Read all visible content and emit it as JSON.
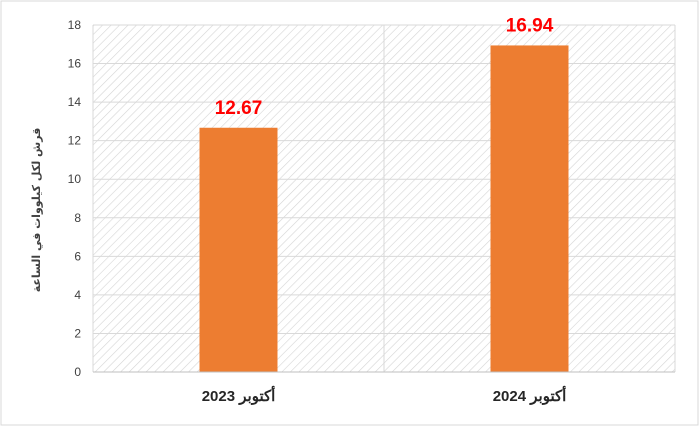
{
  "chart_data": {
    "type": "bar",
    "title": "",
    "xlabel": "",
    "ylabel": "قرش لكل كيلووات في الساعة",
    "categories": [
      "أكتوبر 2023",
      "أكتوبر 2024"
    ],
    "values": [
      12.67,
      16.94
    ],
    "data_labels": [
      "12.67",
      "16.94"
    ],
    "y_ticks": [
      "0",
      "2",
      "4",
      "6",
      "8",
      "10",
      "12",
      "14",
      "16",
      "18"
    ],
    "ylim": [
      0,
      18
    ],
    "grid": true,
    "legend": "none",
    "colors": {
      "bar": "#ED7D31",
      "data_label": "#FF0000",
      "grid": "#D9D9D9",
      "hatch": "#D4D4D4",
      "axis": "#BFBFBF"
    }
  }
}
